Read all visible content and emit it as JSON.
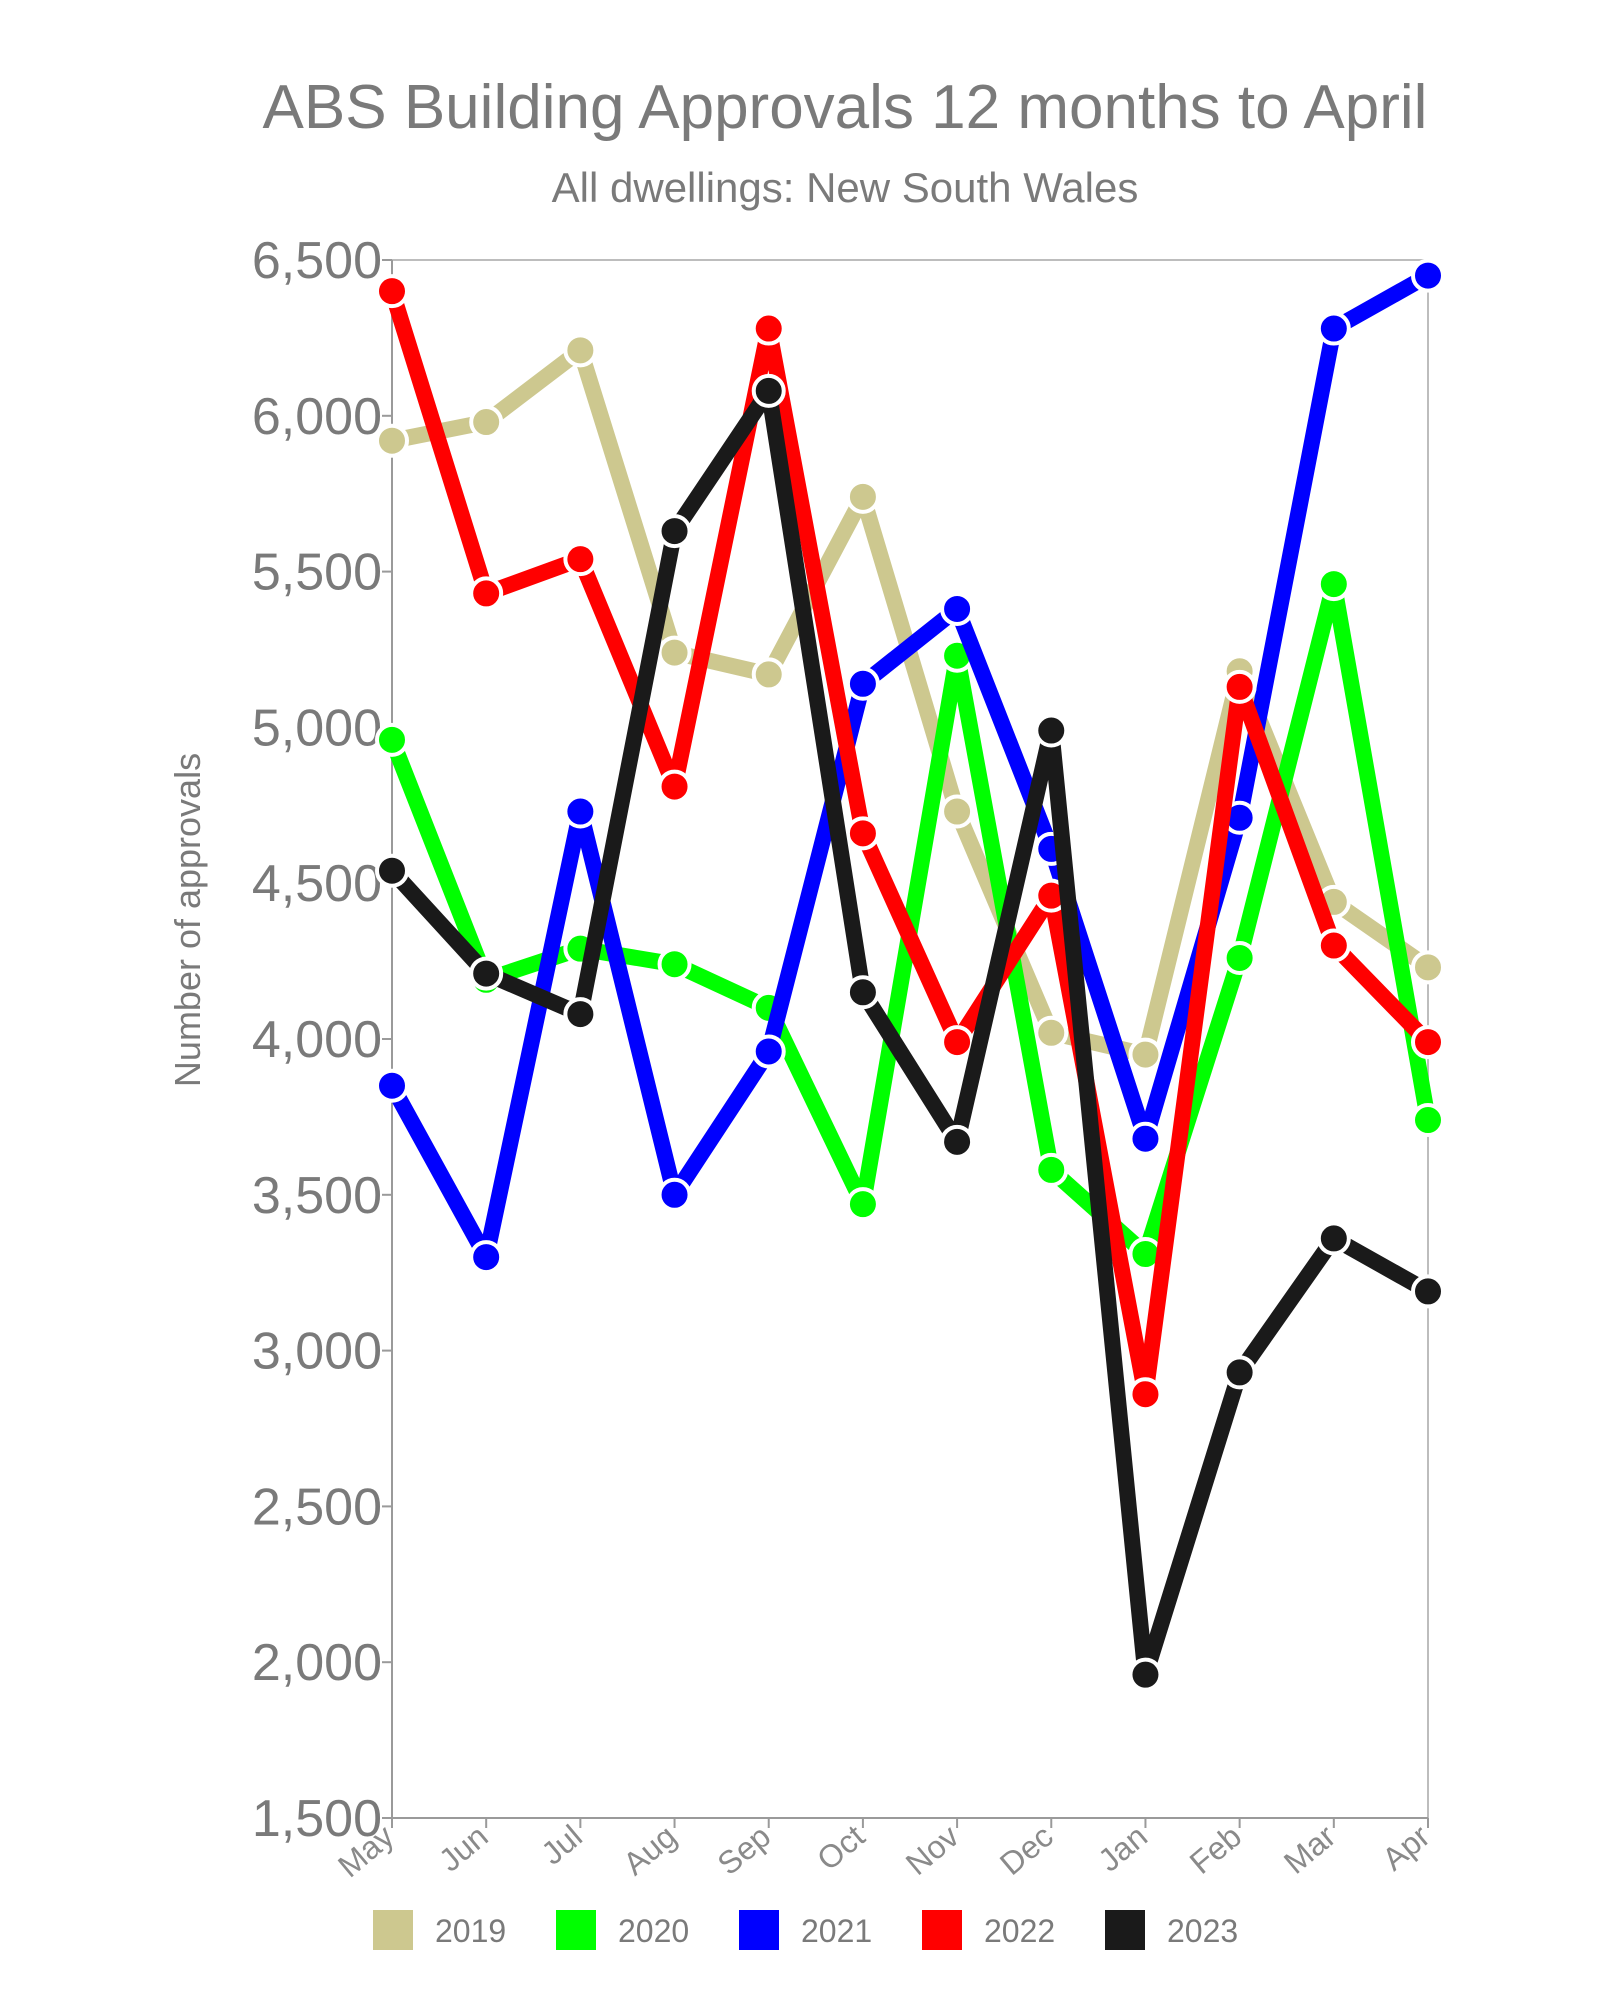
{
  "chart_data": {
    "type": "line",
    "title": "ABS Building Approvals 12 months to April",
    "subtitle": "All dwellings: New South Wales",
    "xlabel": "",
    "ylabel": "Number of approvals",
    "ylim": [
      1500,
      6500
    ],
    "yticks": [
      1500,
      2000,
      2500,
      3000,
      3500,
      4000,
      4500,
      5000,
      5500,
      6000,
      6500
    ],
    "ytick_labels": [
      "1,500",
      "2,000",
      "2,500",
      "3,000",
      "3,500",
      "4,000",
      "4,500",
      "5,000",
      "5,500",
      "6,000",
      "6,500"
    ],
    "categories": [
      "May",
      "Jun",
      "Jul",
      "Aug",
      "Sep",
      "Oct",
      "Nov",
      "Dec",
      "Jan",
      "Feb",
      "Mar",
      "Apr"
    ],
    "grid": false,
    "legend_position": "bottom",
    "series": [
      {
        "name": "2019",
        "color": "#cdc88f",
        "values": [
          5920,
          5980,
          6210,
          5240,
          5170,
          5740,
          4730,
          4020,
          3950,
          5180,
          4440,
          4230
        ]
      },
      {
        "name": "2020",
        "color": "#00ff00",
        "values": [
          4960,
          4190,
          4290,
          4240,
          4100,
          3470,
          5230,
          3580,
          3310,
          4260,
          5460,
          3740
        ]
      },
      {
        "name": "2021",
        "color": "#0000ff",
        "values": [
          3850,
          3300,
          4730,
          3500,
          3960,
          5140,
          5380,
          4610,
          3680,
          4710,
          6280,
          6450
        ]
      },
      {
        "name": "2022",
        "color": "#ff0000",
        "values": [
          6400,
          5430,
          5540,
          4810,
          6280,
          4660,
          3990,
          4460,
          2860,
          5130,
          4300,
          3990
        ]
      },
      {
        "name": "2023",
        "color": "#1a1a1a",
        "values": [
          4540,
          4210,
          4080,
          5630,
          6080,
          4150,
          3670,
          4990,
          1960,
          2930,
          3360,
          3190
        ]
      }
    ]
  }
}
